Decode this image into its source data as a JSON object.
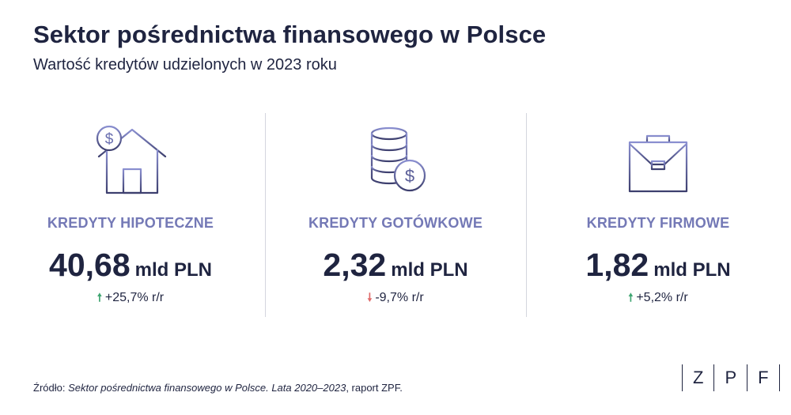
{
  "header": {
    "title": "Sektor pośrednictwa finansowego w Polsce",
    "subtitle": "Wartość kredytów udzielonych w 2023 roku"
  },
  "cards": [
    {
      "icon": "house-dollar-icon",
      "category": "KREDYTY HIPOTECZNE",
      "value": "40,68",
      "unit": "mld PLN",
      "direction": "up",
      "change": "+25,7% r/r"
    },
    {
      "icon": "coins-dollar-icon",
      "category": "KREDYTY GOTÓWKOWE",
      "value": "2,32",
      "unit": "mld PLN",
      "direction": "down",
      "change": "-9,7% r/r"
    },
    {
      "icon": "briefcase-icon",
      "category": "KREDYTY FIRMOWE",
      "value": "1,82",
      "unit": "mld PLN",
      "direction": "up",
      "change": "+5,2% r/r"
    }
  ],
  "arrows": {
    "up": "🠕",
    "down": "🠗"
  },
  "colors": {
    "icon_start": "#7b80c4",
    "icon_end": "#3d3f6e",
    "category": "#7479b6",
    "up": "#3fa571",
    "down": "#e06b6b",
    "text": "#1f2440"
  },
  "source": {
    "prefix": "Źródło: ",
    "title": "Sektor pośrednictwa finansowego w Polsce. Lata 2020–2023",
    "suffix": ", raport ZPF."
  },
  "logo": {
    "letters": [
      "Z",
      "P",
      "F"
    ]
  }
}
